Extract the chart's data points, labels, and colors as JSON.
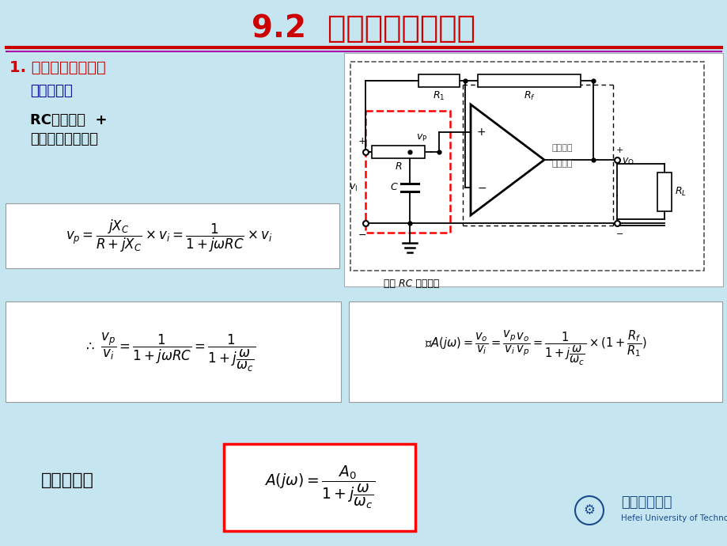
{
  "title": "9.2  一阶有源滤波电路",
  "bg_color": "#c5e6f0",
  "title_color": "#cc0000",
  "title_fontsize": 28,
  "line_color1": "#cc0000",
  "line_color2": "#aa00aa",
  "sec1": "1. 一阶低通滤波电路",
  "sec1_color": "#cc0000",
  "sub1": "电路结构：",
  "sub2a": "RC低通电路  +",
  "sub2b": "同相比例放大电路",
  "label_td": "传递函数：",
  "circuit_label": "无源 RC 滤波电路",
  "tongxiang": "同相比例",
  "fangda": "放大电路",
  "hefei_cn": "合肥工业大学",
  "hefei_en": "Hefei University of Technology"
}
